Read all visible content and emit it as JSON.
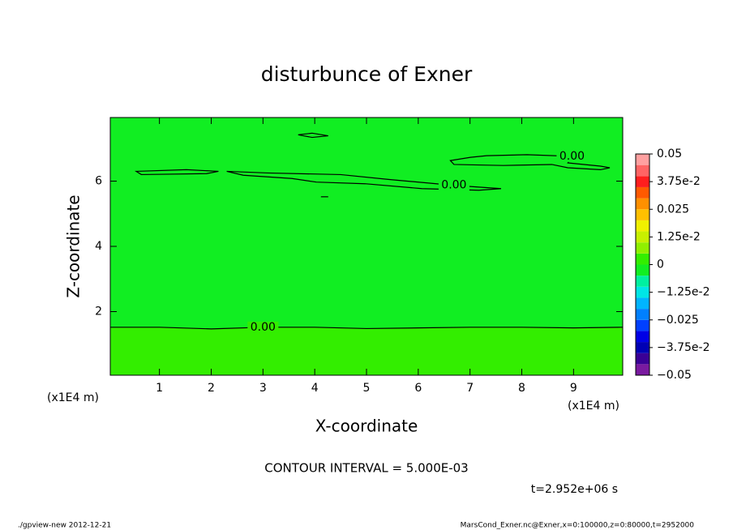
{
  "chart_data": {
    "type": "contour",
    "title": "disturbunce of Exner",
    "x_label": "X-coordinate",
    "y_label": "Z-coordinate",
    "x_unit": "(x1E4 m)",
    "xlim": [
      0.05,
      9.95
    ],
    "ylim": [
      0.05,
      7.95
    ],
    "xticks": [
      1,
      2,
      3,
      4,
      5,
      6,
      7,
      8,
      9
    ],
    "yticks": [
      2,
      4,
      6
    ],
    "background": "#11ee22",
    "contours": [
      {
        "label": "0.00",
        "closed": false,
        "fill": "#33ee00",
        "x": [
          0.05,
          1,
          2,
          3,
          4,
          5,
          6,
          7,
          8,
          9,
          9.95
        ],
        "y": [
          1.52,
          1.52,
          1.47,
          1.52,
          1.52,
          1.48,
          1.5,
          1.52,
          1.52,
          1.5,
          1.52
        ]
      },
      {
        "closed": true,
        "x": [
          0.55,
          1.52,
          2.14,
          1.91,
          0.65
        ],
        "y": [
          6.3,
          6.35,
          6.3,
          6.23,
          6.2
        ]
      },
      {
        "label": "0.00",
        "closed": true,
        "x": [
          2.3,
          3.09,
          4.5,
          5.44,
          6.69,
          7.6,
          7.17,
          6.07,
          4.97,
          4.03,
          3.56,
          2.62
        ],
        "y": [
          6.3,
          6.25,
          6.2,
          6.05,
          5.87,
          5.77,
          5.72,
          5.77,
          5.92,
          5.97,
          6.08,
          6.18
        ]
      },
      {
        "label": "0.00",
        "closed": true,
        "x": [
          6.62,
          7.01,
          7.32,
          8.1,
          8.97,
          8.89,
          9.52,
          9.7,
          9.52,
          8.89,
          8.58,
          7.64,
          6.69
        ],
        "y": [
          6.63,
          6.73,
          6.78,
          6.81,
          6.76,
          6.56,
          6.46,
          6.41,
          6.35,
          6.41,
          6.51,
          6.48,
          6.51
        ]
      },
      {
        "closed": true,
        "x": [
          3.68,
          3.95,
          4.26,
          3.95
        ],
        "y": [
          7.42,
          7.47,
          7.39,
          7.34
        ]
      },
      {
        "closed": false,
        "x": [
          4.12,
          4.26
        ],
        "y": [
          5.52,
          5.52
        ]
      }
    ],
    "colorbar": {
      "levels": [
        -0.05,
        -0.045,
        -0.04,
        -0.035,
        -0.03,
        -0.025,
        -0.02,
        -0.015,
        -0.01,
        -0.005,
        0,
        0.005,
        0.01,
        0.015,
        0.02,
        0.025,
        0.03,
        0.035,
        0.04,
        0.045,
        0.05
      ],
      "colors": [
        "#7a1aa0",
        "#3a0096",
        "#0000b4",
        "#0000e6",
        "#0040ff",
        "#0080ff",
        "#00b4ff",
        "#00e6e6",
        "#00f0a0",
        "#11ee22",
        "#33ee00",
        "#90f000",
        "#c8f000",
        "#f0f000",
        "#ffc000",
        "#ff9000",
        "#ff5a00",
        "#ff1e1e",
        "#ff6464",
        "#ffa0a0"
      ],
      "ticks": [
        {
          "value": 0.05,
          "label": "0.05"
        },
        {
          "value": 0.0375,
          "label": "3.75e-2"
        },
        0.025,
        {
          "value": 0.0125,
          "label": "1.25e-2"
        },
        0,
        {
          "value": -0.0125,
          "label": "−1.25e-2"
        },
        {
          "value": -0.025,
          "label": "−0.025"
        },
        {
          "value": -0.0375,
          "label": "−3.75e-2"
        },
        {
          "value": -0.05,
          "label": "−0.05"
        }
      ]
    },
    "contour_interval": "CONTOUR INTERVAL = 5.000E-03",
    "time": "t=2.952e+06 s",
    "footer_left": "./gpview-new  2012-12-21",
    "footer_right": "MarsCond_Exner.nc@Exner,x=0:100000,z=0:80000,t=2952000"
  }
}
